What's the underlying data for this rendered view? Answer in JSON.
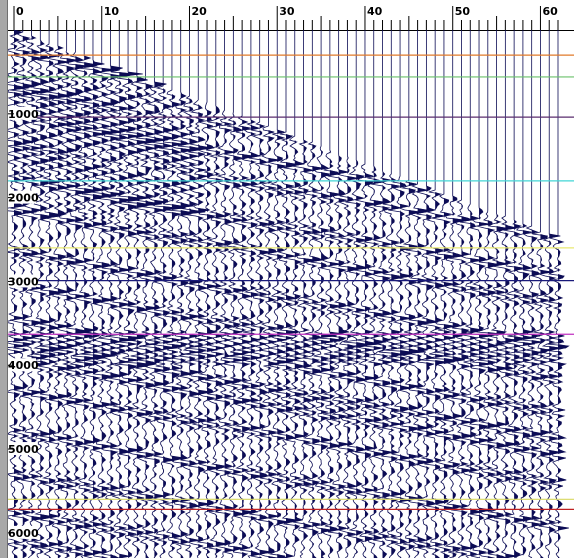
{
  "trace_axis": {
    "labels": [
      "0",
      "10",
      "20",
      "30",
      "40",
      "50",
      "60"
    ],
    "min": 0,
    "max": 62
  },
  "depth_axis": {
    "labels": [
      "1000",
      "2000",
      "3000",
      "4000",
      "5000",
      "6000"
    ],
    "min": 0,
    "max": 6300
  },
  "horizons": [
    {
      "depth": 300,
      "color": "#e07a2a"
    },
    {
      "depth": 560,
      "color": "#6ac16a"
    },
    {
      "depth": 1040,
      "color": "#5a2d6e"
    },
    {
      "depth": 1800,
      "color": "#42d6d6"
    },
    {
      "depth": 2600,
      "color": "#e8e870"
    },
    {
      "depth": 2990,
      "color": "#1a1a7a"
    },
    {
      "depth": 3630,
      "color": "#c030c0"
    },
    {
      "depth": 5600,
      "color": "#d8d860"
    },
    {
      "depth": 5720,
      "color": "#c02020"
    }
  ],
  "colors": {
    "wiggle": "#0c0c55",
    "background": "#ffffff",
    "ruler": "#a8a8a8"
  }
}
